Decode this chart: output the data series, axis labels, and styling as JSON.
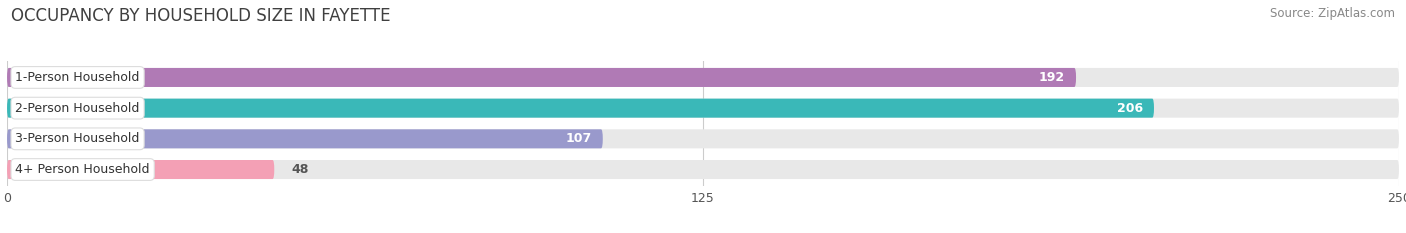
{
  "title": "OCCUPANCY BY HOUSEHOLD SIZE IN FAYETTE",
  "source": "Source: ZipAtlas.com",
  "categories": [
    "1-Person Household",
    "2-Person Household",
    "3-Person Household",
    "4+ Person Household"
  ],
  "values": [
    192,
    206,
    107,
    48
  ],
  "bar_colors": [
    "#b07ab5",
    "#3ab8b8",
    "#9999cc",
    "#f4a0b5"
  ],
  "xlim": [
    0,
    250
  ],
  "xticks": [
    0,
    125,
    250
  ],
  "background_color": "#ffffff",
  "bar_bg_color": "#e8e8e8",
  "title_fontsize": 12,
  "source_fontsize": 8.5,
  "label_fontsize": 9,
  "value_fontsize": 9
}
